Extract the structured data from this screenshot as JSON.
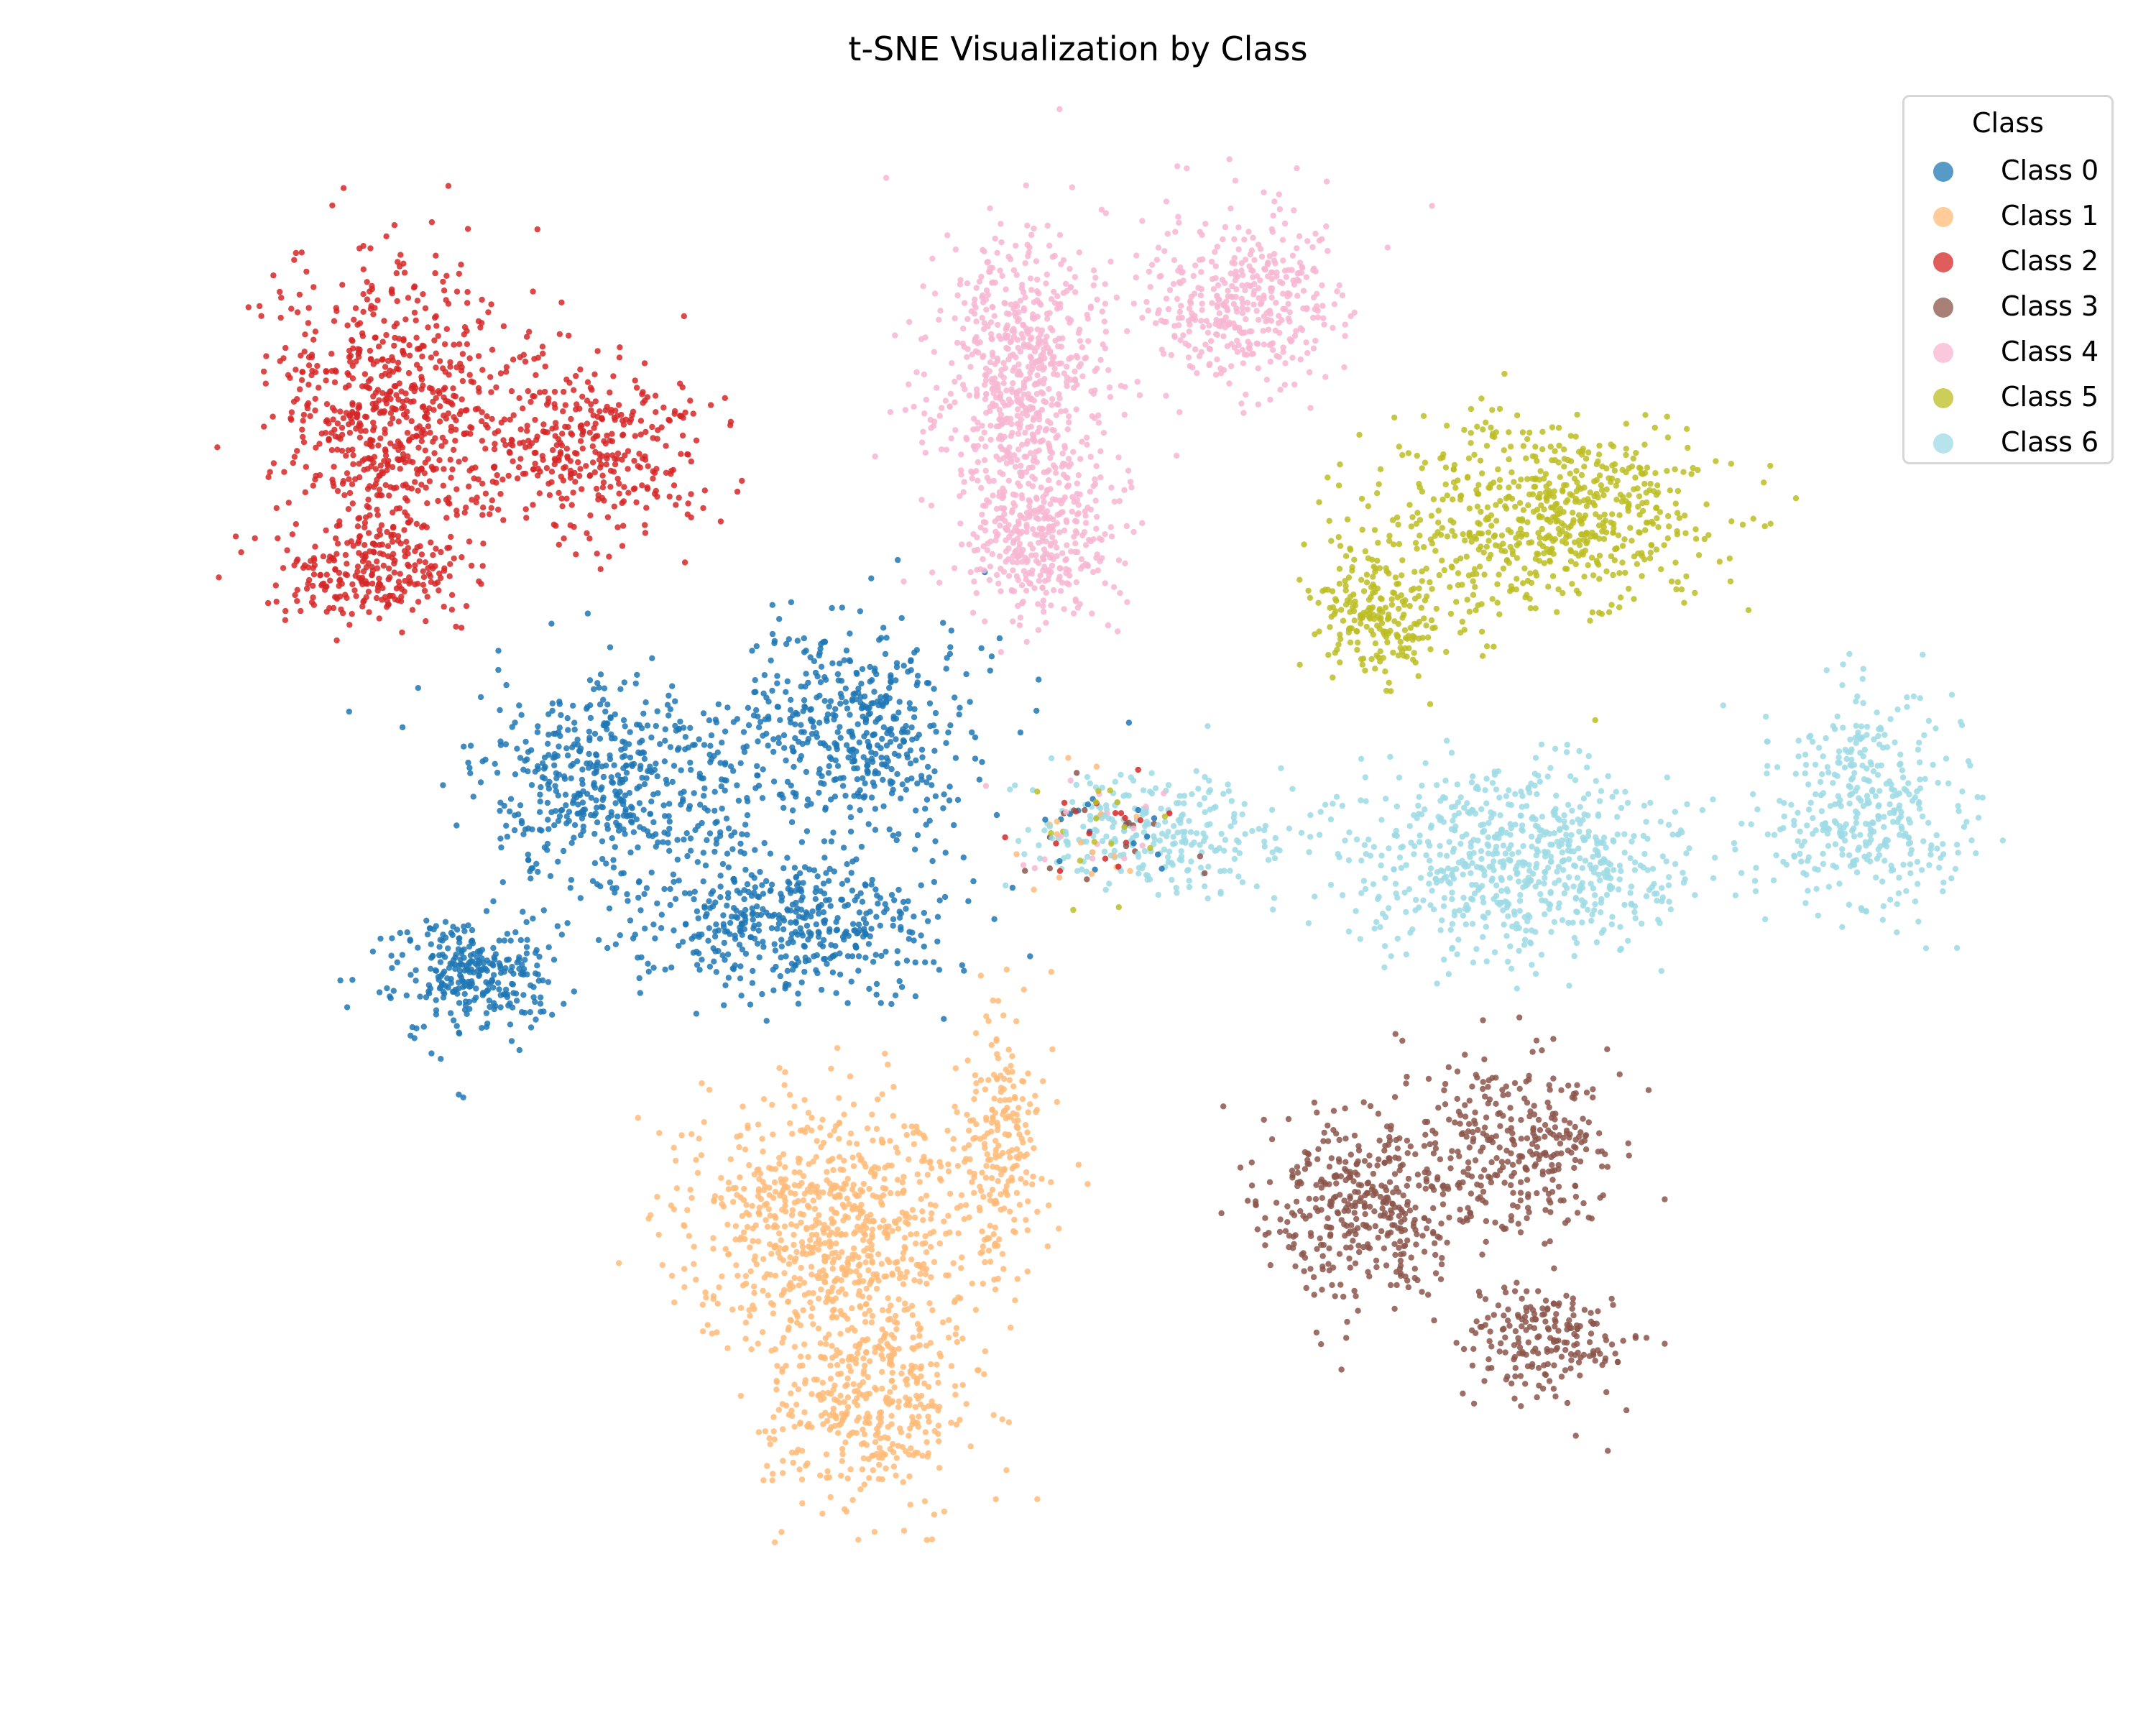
{
  "chart_data": {
    "type": "scatter",
    "title": "t-SNE Visualization by Class",
    "xlabel": "",
    "ylabel": "",
    "axes_visible": false,
    "grid": false,
    "xlim": [
      -100,
      100
    ],
    "ylim": [
      -75,
      75
    ],
    "legend": {
      "title": "Class",
      "placement": "top-right"
    },
    "series": [
      {
        "name": "Class 0",
        "color": "#1f77b4",
        "clusters": [
          {
            "center": [
              -49,
              10
            ],
            "spread": [
              9,
              7
            ],
            "count": 520
          },
          {
            "center": [
              -24,
              16
            ],
            "spread": [
              8,
              7
            ],
            "count": 480
          },
          {
            "center": [
              -31,
              -3
            ],
            "spread": [
              10,
              5
            ],
            "count": 460
          },
          {
            "center": [
              -63,
              -8
            ],
            "spread": [
              6,
              4
            ],
            "count": 300
          }
        ]
      },
      {
        "name": "Class 1",
        "color": "#ffbb78",
        "clusters": [
          {
            "center": [
              -26,
              -33
            ],
            "spread": [
              10,
              8
            ],
            "count": 760
          },
          {
            "center": [
              -23,
              -50
            ],
            "spread": [
              7,
              7
            ],
            "count": 420
          },
          {
            "center": [
              -9,
              -25
            ],
            "spread": [
              3,
              8
            ],
            "count": 200
          }
        ]
      },
      {
        "name": "Class 2",
        "color": "#d62728",
        "clusters": [
          {
            "center": [
              -71,
              47
            ],
            "spread": [
              8,
              10
            ],
            "count": 700
          },
          {
            "center": [
              -51,
              44
            ],
            "spread": [
              8,
              6
            ],
            "count": 350
          },
          {
            "center": [
              -74,
              31
            ],
            "spread": [
              7,
              3
            ],
            "count": 220
          }
        ]
      },
      {
        "name": "Class 3",
        "color": "#8c564b",
        "clusters": [
          {
            "center": [
              28,
              -31
            ],
            "spread": [
              7,
              6
            ],
            "count": 400
          },
          {
            "center": [
              44,
              -25
            ],
            "spread": [
              7,
              6
            ],
            "count": 300
          },
          {
            "center": [
              47,
              -44
            ],
            "spread": [
              6,
              4
            ],
            "count": 200
          }
        ]
      },
      {
        "name": "Class 4",
        "color": "#f7b6d2",
        "clusters": [
          {
            "center": [
              -7,
              50
            ],
            "spread": [
              6,
              10
            ],
            "count": 700
          },
          {
            "center": [
              15,
              58
            ],
            "spread": [
              7,
              6
            ],
            "count": 400
          },
          {
            "center": [
              -5,
              34
            ],
            "spread": [
              5,
              5
            ],
            "count": 300
          }
        ]
      },
      {
        "name": "Class 5",
        "color": "#bcbd22",
        "clusters": [
          {
            "center": [
              47,
              37
            ],
            "spread": [
              11,
              6
            ],
            "count": 650
          },
          {
            "center": [
              30,
              27
            ],
            "spread": [
              5,
              4
            ],
            "count": 220
          }
        ]
      },
      {
        "name": "Class 6",
        "color": "#9edae5",
        "clusters": [
          {
            "center": [
              44,
              3
            ],
            "spread": [
              12,
              6
            ],
            "count": 700
          },
          {
            "center": [
              80,
              8
            ],
            "spread": [
              7,
              7
            ],
            "count": 380
          },
          {
            "center": [
              7,
              6
            ],
            "spread": [
              8,
              4
            ],
            "count": 250
          }
        ]
      }
    ],
    "mixed_region": {
      "center": [
        0,
        6
      ],
      "spread": [
        6,
        4
      ],
      "count": 70
    }
  }
}
